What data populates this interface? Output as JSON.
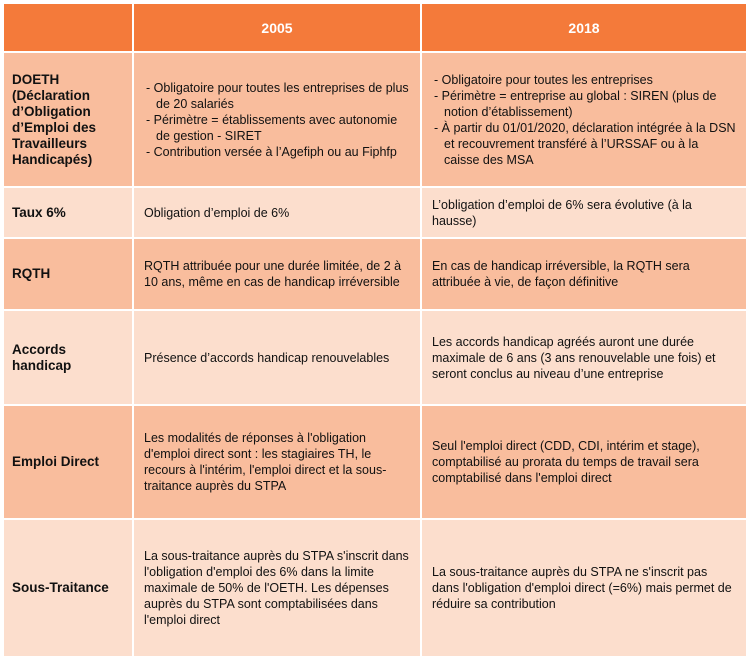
{
  "table": {
    "header": [
      "",
      "2005",
      "2018"
    ],
    "rows": [
      {
        "label": "DOETH (Déclaration d’Obligation d’Emploi des Travailleurs Handicapés)",
        "cells": [
          [
            "Obligatoire pour toutes les entreprises de plus de 20 salariés",
            "Périmètre = établissements avec autonomie de gestion - SIRET",
            "Contribution versée à l’Agefiph ou au Fiphfp"
          ],
          [
            "Obligatoire pour toutes les entreprises",
            "Périmètre = entreprise au global : SIREN (plus de notion d’établissement)",
            "À partir du 01/01/2020, déclaration intégrée à la DSN et recouvrement transféré à l’URSSAF ou à la caisse des MSA"
          ]
        ]
      },
      {
        "label": "Taux 6%",
        "cells": [
          "Obligation d’emploi de 6%",
          "L’obligation d’emploi de 6% sera évolutive (à la hausse)"
        ]
      },
      {
        "label": "RQTH",
        "cells": [
          "RQTH attribuée pour une durée limitée, de 2 à 10 ans, même en cas de handicap irréversible",
          "En cas de handicap irréversible, la RQTH sera attribuée à vie, de façon définitive"
        ]
      },
      {
        "label": "Accords handicap",
        "cells": [
          "Présence d’accords handicap renouvelables",
          "Les accords handicap agréés auront une durée maximale de 6 ans (3 ans renouvelable une fois) et seront conclus au niveau d’une entreprise"
        ]
      },
      {
        "label": "Emploi Direct",
        "cells": [
          "Les modalités de réponses à l'obligation d'emploi direct sont : les stagiaires TH, le recours à l'intérim, l'emploi direct et la sous-traitance auprès du STPA",
          "Seul l'emploi direct (CDD, CDI, intérim et stage), comptabilisé au prorata du temps de travail sera comptabilisé dans l'emploi direct"
        ]
      },
      {
        "label": "Sous-Traitance",
        "cells": [
          "La sous-traitance auprès du STPA s'inscrit dans l'obligation d'emploi des 6% dans la limite maximale de 50% de l'OETH. Les dépenses auprès du STPA sont comptabilisées dans l'emploi direct",
          "La sous-traitance auprès du STPA ne s'inscrit pas dans l'obligation d'emploi direct (=6%) mais permet de réduire sa contribution"
        ]
      }
    ]
  }
}
